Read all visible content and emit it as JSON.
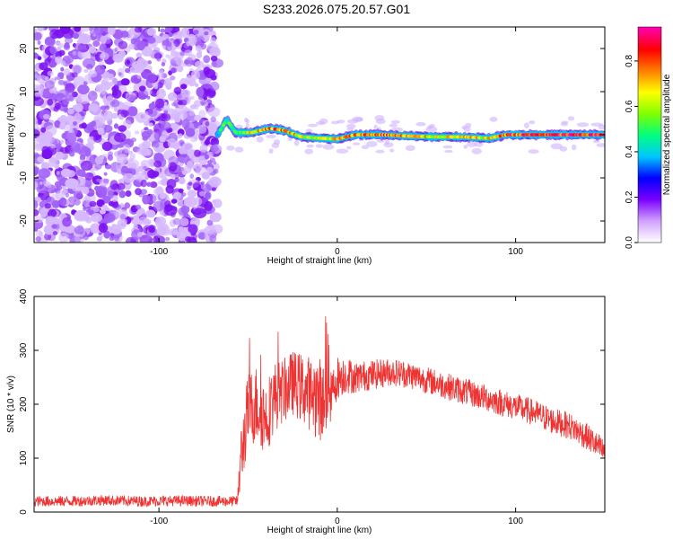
{
  "title": "S233.2026.075.20.57.G01",
  "colors": {
    "snr_line": "#ee3333",
    "spectrum_low": "#8a2be2",
    "frame": "#000000"
  },
  "chart_data": [
    {
      "type": "heatmap",
      "xlabel": "Height of straight line (km)",
      "ylabel": "Frequency (Hz)",
      "xlim": [
        -170,
        150
      ],
      "ylim": [
        -25,
        25
      ],
      "x_ticks": [
        -100,
        0,
        100
      ],
      "x_tick_labels": [
        "-100",
        "0",
        "100"
      ],
      "y_ticks": [
        -20,
        -10,
        0,
        10,
        20
      ],
      "y_tick_labels": [
        "-20",
        "-10",
        "0",
        "10",
        "20"
      ],
      "colorbar": {
        "label": "Normalized spectral amplitude",
        "range": [
          0,
          0.95
        ],
        "ticks": [
          0,
          0.2,
          0.4,
          0.6,
          0.8
        ],
        "tick_labels": [
          "0.0",
          "0.2",
          "0.4",
          "0.6",
          "0.8"
        ],
        "palette": [
          "#ffffff",
          "#d0a0ff",
          "#7a00ff",
          "#0000ff",
          "#00c8ff",
          "#00ff80",
          "#80ff00",
          "#ffff00",
          "#ff8000",
          "#ff0000",
          "#ff00aa"
        ]
      },
      "noise_region": {
        "x_from": -170,
        "x_to": -67,
        "f_min": -25,
        "f_max": 25
      },
      "signal_ridge": [
        {
          "x": -67,
          "f": 0.0,
          "amp": 0.45
        },
        {
          "x": -62,
          "f": 3.5,
          "amp": 0.55
        },
        {
          "x": -57,
          "f": 0.5,
          "amp": 0.55
        },
        {
          "x": -48,
          "f": 0.5,
          "amp": 0.7
        },
        {
          "x": -38,
          "f": 1.5,
          "amp": 0.85
        },
        {
          "x": -30,
          "f": 1.0,
          "amp": 0.8
        },
        {
          "x": -20,
          "f": -0.5,
          "amp": 0.7
        },
        {
          "x": -10,
          "f": -0.8,
          "amp": 0.65
        },
        {
          "x": 0,
          "f": -1.0,
          "amp": 0.75
        },
        {
          "x": 10,
          "f": 0.0,
          "amp": 0.8
        },
        {
          "x": 25,
          "f": 0.0,
          "amp": 0.85
        },
        {
          "x": 40,
          "f": -0.3,
          "amp": 0.75
        },
        {
          "x": 55,
          "f": -0.5,
          "amp": 0.7
        },
        {
          "x": 70,
          "f": -0.5,
          "amp": 0.72
        },
        {
          "x": 85,
          "f": -0.8,
          "amp": 0.7
        },
        {
          "x": 95,
          "f": 0.0,
          "amp": 0.88
        },
        {
          "x": 120,
          "f": 0.0,
          "amp": 0.9
        },
        {
          "x": 150,
          "f": 0.0,
          "amp": 0.9
        }
      ]
    },
    {
      "type": "line",
      "xlabel": "Height of straight line (km)",
      "ylabel": "SNR (10 * v/v)",
      "xlim": [
        -170,
        150
      ],
      "ylim": [
        0,
        400
      ],
      "x_ticks": [
        -100,
        0,
        100
      ],
      "x_tick_labels": [
        "-100",
        "0",
        "100"
      ],
      "y_ticks": [
        0,
        100,
        200,
        300,
        400
      ],
      "y_tick_labels": [
        "0",
        "100",
        "200",
        "300",
        "400"
      ],
      "series": [
        {
          "color": "#ee3333",
          "x": [
            -170,
            -150,
            -130,
            -110,
            -90,
            -70,
            -56,
            -54,
            -50,
            -45,
            -40,
            -35,
            -30,
            -25,
            -20,
            -15,
            -10,
            -5,
            0,
            5,
            10,
            20,
            30,
            40,
            50,
            60,
            70,
            80,
            90,
            100,
            110,
            120,
            130,
            140,
            150
          ],
          "y": [
            20,
            20,
            22,
            20,
            21,
            20,
            20,
            100,
            190,
            200,
            175,
            215,
            225,
            240,
            230,
            220,
            210,
            200,
            250,
            255,
            250,
            255,
            260,
            255,
            245,
            235,
            225,
            215,
            205,
            195,
            185,
            170,
            160,
            140,
            110
          ],
          "noise": [
            10,
            10,
            10,
            10,
            10,
            10,
            10,
            60,
            70,
            75,
            70,
            65,
            60,
            60,
            65,
            70,
            80,
            50,
            40,
            35,
            30,
            28,
            26,
            26,
            25,
            25,
            25,
            25,
            25,
            25,
            25,
            25,
            25,
            25,
            25
          ]
        }
      ]
    }
  ]
}
